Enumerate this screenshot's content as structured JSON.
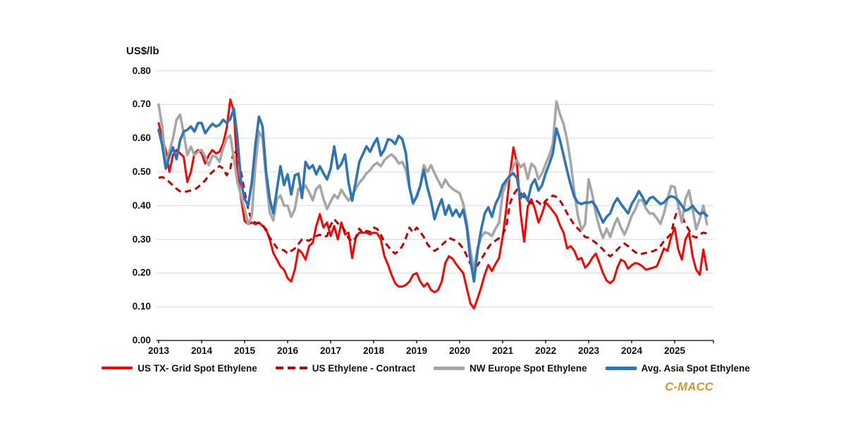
{
  "branding": {
    "logo_text": "C-MACC",
    "logo_color": "#C49A33"
  },
  "chart_data": {
    "type": "line",
    "title": "",
    "ylabel": "US$/lb",
    "xlabel": "",
    "ylim": [
      0.0,
      0.8
    ],
    "ytick_step": 0.1,
    "y_ticks": [
      "0.00",
      "0.10",
      "0.20",
      "0.30",
      "0.40",
      "0.50",
      "0.60",
      "0.70",
      "0.80"
    ],
    "x_ticks": [
      "2013",
      "2014",
      "2015",
      "2016",
      "2017",
      "2018",
      "2019",
      "2020",
      "2021",
      "2022",
      "2023",
      "2024",
      "2025"
    ],
    "frequency": "monthly",
    "x_start": "2013-01",
    "x_end": "2025-10",
    "grid": "horizontal",
    "gridline_color": "#D9D9D9",
    "axis_color": "#000000",
    "legend_position": "bottom",
    "series": [
      {
        "name": "US TX- Grid Spot Ethylene",
        "color": "#FF0000",
        "dash": "solid",
        "width": 3,
        "values": [
          0.645,
          0.6,
          0.565,
          0.5,
          0.55,
          0.565,
          0.555,
          0.545,
          0.47,
          0.5,
          0.555,
          0.565,
          0.555,
          0.525,
          0.55,
          0.565,
          0.555,
          0.56,
          0.585,
          0.63,
          0.715,
          0.68,
          0.5,
          0.42,
          0.355,
          0.345,
          0.35,
          0.345,
          0.35,
          0.34,
          0.33,
          0.3,
          0.26,
          0.24,
          0.22,
          0.21,
          0.185,
          0.175,
          0.21,
          0.27,
          0.26,
          0.24,
          0.28,
          0.29,
          0.34,
          0.375,
          0.335,
          0.35,
          0.31,
          0.34,
          0.3,
          0.35,
          0.315,
          0.32,
          0.245,
          0.305,
          0.32,
          0.32,
          0.32,
          0.315,
          0.32,
          0.318,
          0.3,
          0.25,
          0.225,
          0.195,
          0.17,
          0.16,
          0.16,
          0.165,
          0.175,
          0.195,
          0.2,
          0.175,
          0.16,
          0.17,
          0.15,
          0.143,
          0.15,
          0.175,
          0.23,
          0.25,
          0.243,
          0.227,
          0.213,
          0.2,
          0.155,
          0.11,
          0.095,
          0.125,
          0.157,
          0.196,
          0.224,
          0.206,
          0.227,
          0.245,
          0.307,
          0.39,
          0.49,
          0.573,
          0.524,
          0.377,
          0.293,
          0.398,
          0.419,
          0.39,
          0.35,
          0.377,
          0.41,
          0.398,
          0.384,
          0.37,
          0.342,
          0.32,
          0.273,
          0.28,
          0.266,
          0.24,
          0.245,
          0.216,
          0.227,
          0.245,
          0.258,
          0.23,
          0.2,
          0.178,
          0.17,
          0.18,
          0.216,
          0.24,
          0.234,
          0.213,
          0.223,
          0.23,
          0.227,
          0.22,
          0.21,
          0.213,
          0.216,
          0.22,
          0.245,
          0.273,
          0.266,
          0.307,
          0.335,
          0.27,
          0.24,
          0.3,
          0.32,
          0.25,
          0.21,
          0.195,
          0.27,
          0.21
        ]
      },
      {
        "name": "US Ethylene - Contract",
        "color": "#C00000",
        "dash": "dashed",
        "width": 3,
        "values": [
          0.4825,
          0.485,
          0.48,
          0.47,
          0.46,
          0.45,
          0.4425,
          0.44,
          0.4425,
          0.445,
          0.4475,
          0.455,
          0.465,
          0.475,
          0.49,
          0.5,
          0.51,
          0.5175,
          0.51,
          0.49,
          0.51,
          0.565,
          0.55,
          0.5,
          0.44,
          0.39,
          0.355,
          0.35,
          0.3475,
          0.345,
          0.325,
          0.305,
          0.29,
          0.275,
          0.27,
          0.2675,
          0.258,
          0.266,
          0.273,
          0.286,
          0.3,
          0.298,
          0.296,
          0.304,
          0.31,
          0.314,
          0.307,
          0.31,
          0.3425,
          0.36,
          0.3475,
          0.342,
          0.325,
          0.304,
          0.293,
          0.305,
          0.332,
          0.318,
          0.325,
          0.322,
          0.335,
          0.331,
          0.314,
          0.293,
          0.28,
          0.266,
          0.258,
          0.266,
          0.28,
          0.304,
          0.335,
          0.32,
          0.335,
          0.322,
          0.307,
          0.286,
          0.273,
          0.266,
          0.273,
          0.283,
          0.293,
          0.304,
          0.3,
          0.296,
          0.286,
          0.273,
          0.251,
          0.227,
          0.216,
          0.223,
          0.241,
          0.258,
          0.276,
          0.29,
          0.296,
          0.304,
          0.314,
          0.3375,
          0.405,
          0.433,
          0.4475,
          0.437,
          0.426,
          0.414,
          0.407,
          0.417,
          0.41,
          0.4,
          0.415,
          0.422,
          0.43,
          0.426,
          0.415,
          0.398,
          0.377,
          0.36,
          0.342,
          0.332,
          0.321,
          0.307,
          0.305,
          0.2975,
          0.29,
          0.28,
          0.27,
          0.2575,
          0.25,
          0.2575,
          0.27,
          0.28,
          0.2875,
          0.28,
          0.27,
          0.2625,
          0.255,
          0.2575,
          0.26,
          0.2625,
          0.265,
          0.27,
          0.28,
          0.295,
          0.305,
          0.3175,
          0.3625,
          0.3925,
          0.37,
          0.345,
          0.3275,
          0.31,
          0.305,
          0.315,
          0.32,
          0.3175
        ]
      },
      {
        "name": "NW Europe Spot Ethylene",
        "color": "#A6A6A6",
        "dash": "solid",
        "width": 3.6,
        "values": [
          0.7,
          0.635,
          0.525,
          0.56,
          0.6,
          0.655,
          0.67,
          0.615,
          0.55,
          0.575,
          0.55,
          0.56,
          0.565,
          0.545,
          0.52,
          0.548,
          0.545,
          0.53,
          0.57,
          0.6,
          0.608,
          0.54,
          0.47,
          0.43,
          0.39,
          0.345,
          0.37,
          0.52,
          0.62,
          0.6,
          0.48,
          0.38,
          0.356,
          0.42,
          0.43,
          0.4,
          0.4,
          0.367,
          0.39,
          0.45,
          0.445,
          0.46,
          0.44,
          0.416,
          0.45,
          0.46,
          0.42,
          0.39,
          0.412,
          0.432,
          0.422,
          0.447,
          0.43,
          0.415,
          0.43,
          0.45,
          0.468,
          0.48,
          0.496,
          0.505,
          0.52,
          0.527,
          0.517,
          0.535,
          0.545,
          0.552,
          0.542,
          0.525,
          0.53,
          0.506,
          0.454,
          0.405,
          0.43,
          0.46,
          0.52,
          0.5,
          0.52,
          0.496,
          0.475,
          0.454,
          0.477,
          0.46,
          0.45,
          0.443,
          0.437,
          0.405,
          0.35,
          0.266,
          0.21,
          0.273,
          0.307,
          0.321,
          0.318,
          0.31,
          0.332,
          0.349,
          0.437,
          0.468,
          0.486,
          0.517,
          0.535,
          0.514,
          0.524,
          0.479,
          0.524,
          0.514,
          0.479,
          0.496,
          0.524,
          0.549,
          0.583,
          0.709,
          0.671,
          0.643,
          0.594,
          0.527,
          0.44,
          0.37,
          0.328,
          0.345,
          0.478,
          0.433,
          0.377,
          0.335,
          0.304,
          0.332,
          0.307,
          0.339,
          0.363,
          0.335,
          0.314,
          0.34,
          0.37,
          0.388,
          0.416,
          0.416,
          0.391,
          0.377,
          0.377,
          0.363,
          0.346,
          0.377,
          0.419,
          0.458,
          0.455,
          0.4,
          0.35,
          0.42,
          0.445,
          0.39,
          0.33,
          0.36,
          0.4,
          0.345
        ]
      },
      {
        "name": "Avg. Asia Spot Ethylene",
        "color": "#2E75B6",
        "dash": "solid",
        "width": 3.6,
        "values": [
          0.625,
          0.58,
          0.51,
          0.545,
          0.573,
          0.538,
          0.594,
          0.62,
          0.625,
          0.635,
          0.62,
          0.645,
          0.645,
          0.615,
          0.63,
          0.643,
          0.635,
          0.64,
          0.655,
          0.645,
          0.657,
          0.688,
          0.6,
          0.47,
          0.42,
          0.4,
          0.47,
          0.58,
          0.664,
          0.635,
          0.5,
          0.42,
          0.377,
          0.447,
          0.517,
          0.461,
          0.493,
          0.433,
          0.49,
          0.495,
          0.423,
          0.53,
          0.51,
          0.52,
          0.493,
          0.517,
          0.496,
          0.478,
          0.51,
          0.576,
          0.51,
          0.524,
          0.552,
          0.468,
          0.415,
          0.47,
          0.53,
          0.553,
          0.576,
          0.56,
          0.583,
          0.6,
          0.549,
          0.567,
          0.597,
          0.594,
          0.583,
          0.607,
          0.597,
          0.555,
          0.454,
          0.409,
          0.426,
          0.458,
          0.506,
          0.454,
          0.415,
          0.36,
          0.394,
          0.419,
          0.373,
          0.401,
          0.37,
          0.388,
          0.367,
          0.388,
          0.335,
          0.238,
          0.175,
          0.266,
          0.329,
          0.377,
          0.395,
          0.367,
          0.405,
          0.426,
          0.461,
          0.475,
          0.489,
          0.496,
          0.482,
          0.422,
          0.436,
          0.415,
          0.461,
          0.478,
          0.445,
          0.461,
          0.496,
          0.524,
          0.555,
          0.629,
          0.594,
          0.549,
          0.503,
          0.461,
          0.426,
          0.409,
          0.405,
          0.409,
          0.409,
          0.412,
          0.398,
          0.374,
          0.35,
          0.367,
          0.377,
          0.405,
          0.422,
          0.405,
          0.391,
          0.377,
          0.405,
          0.422,
          0.443,
          0.426,
          0.405,
          0.422,
          0.426,
          0.415,
          0.405,
          0.409,
          0.422,
          0.428,
          0.425,
          0.415,
          0.4,
          0.385,
          0.39,
          0.4,
          0.385,
          0.375,
          0.38,
          0.37
        ]
      }
    ]
  }
}
